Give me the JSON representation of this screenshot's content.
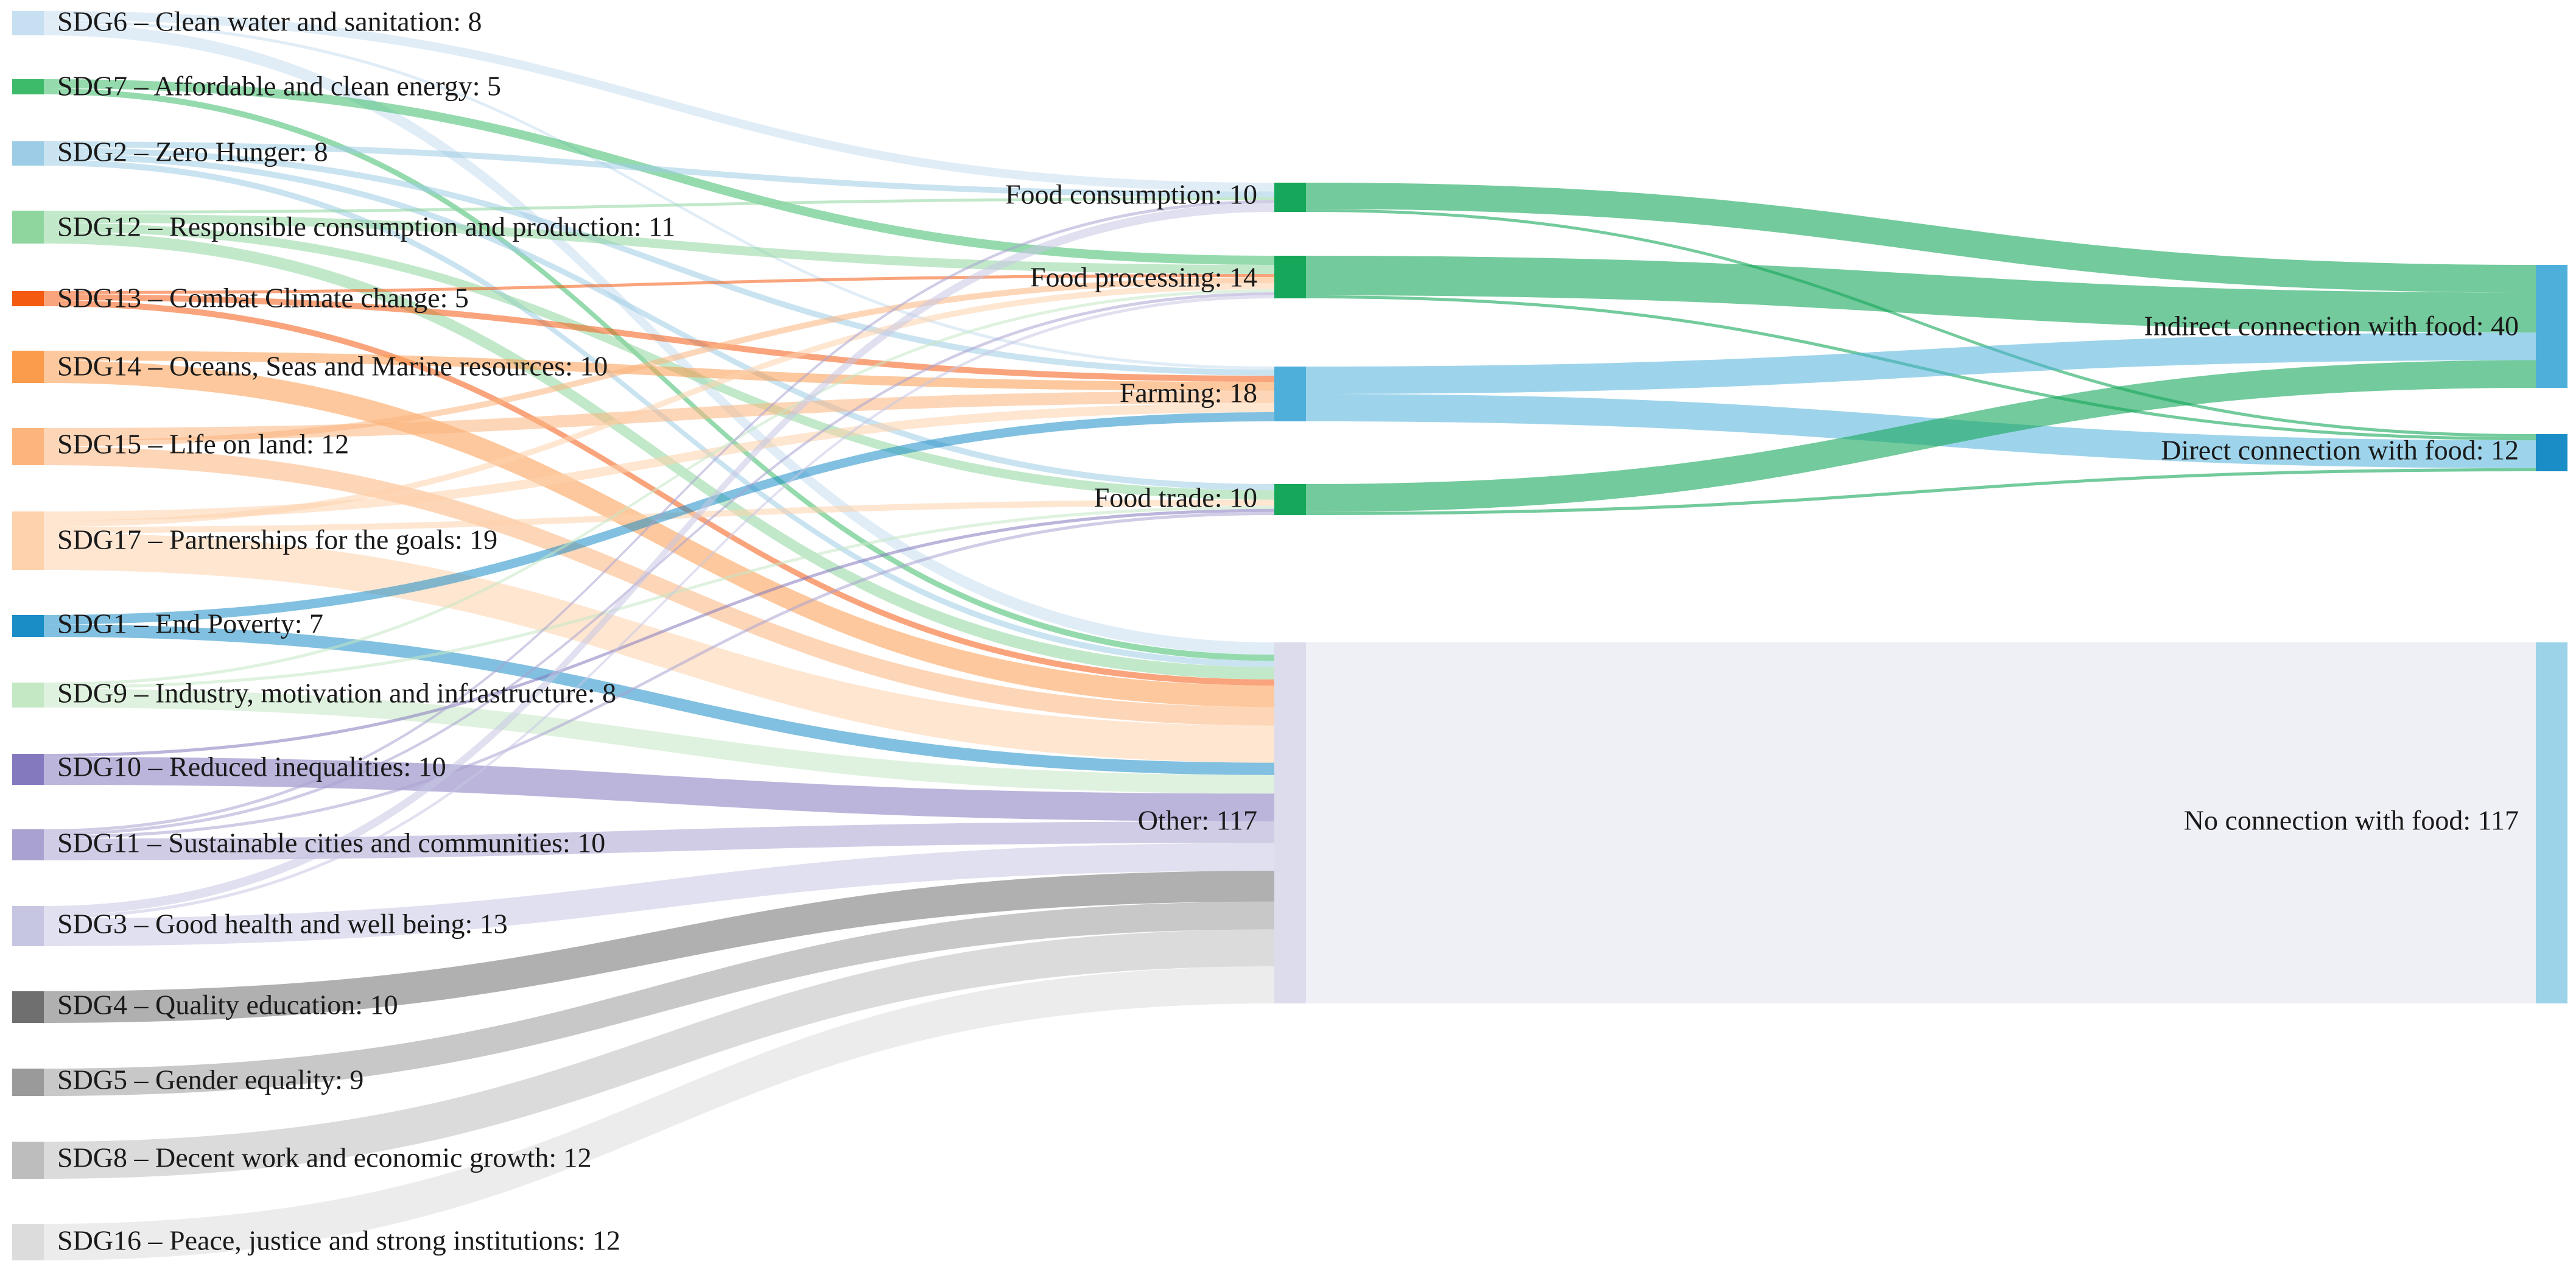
{
  "chart_data": {
    "type": "sankey",
    "title": "",
    "nodes": [
      {
        "id": "sdg6",
        "label": "SDG6 – Clean water and sanitation: 8",
        "value": 8,
        "color": "#c6dff1"
      },
      {
        "id": "sdg7",
        "label": "SDG7 – Affordable and clean energy: 5",
        "value": 5,
        "color": "#3dbb6a"
      },
      {
        "id": "sdg2",
        "label": "SDG2 – Zero Hunger: 8",
        "value": 8,
        "color": "#9dcce6"
      },
      {
        "id": "sdg12",
        "label": "SDG12 – Responsible consumption and production: 11",
        "value": 11,
        "color": "#8fd69e"
      },
      {
        "id": "sdg13",
        "label": "SDG13 – Combat Climate change: 5",
        "value": 5,
        "color": "#f45a10"
      },
      {
        "id": "sdg14",
        "label": "SDG14 – Oceans, Seas and Marine resources: 10",
        "value": 10,
        "color": "#fb9b4c"
      },
      {
        "id": "sdg15",
        "label": "SDG15 – Life on land: 12",
        "value": 12,
        "color": "#fcb57d"
      },
      {
        "id": "sdg17",
        "label": "SDG17 – Partnerships for the goals: 19",
        "value": 19,
        "color": "#fdd2ac"
      },
      {
        "id": "sdg1",
        "label": "SDG1 – End Poverty: 7",
        "value": 7,
        "color": "#1a8cc6"
      },
      {
        "id": "sdg9",
        "label": "SDG9 – Industry, motivation and infrastructure: 8",
        "value": 8,
        "color": "#c4e8c4"
      },
      {
        "id": "sdg10",
        "label": "SDG10 – Reduced inequalities: 10",
        "value": 10,
        "color": "#8479be"
      },
      {
        "id": "sdg11",
        "label": "SDG11 – Sustainable cities and communities: 10",
        "value": 10,
        "color": "#a9a2d1"
      },
      {
        "id": "sdg3",
        "label": "SDG3 – Good health and well being: 13",
        "value": 13,
        "color": "#c6c6e3"
      },
      {
        "id": "sdg4",
        "label": "SDG4 – Quality education: 10",
        "value": 10,
        "color": "#6f6f6f"
      },
      {
        "id": "sdg5",
        "label": "SDG5 – Gender equality: 9",
        "value": 9,
        "color": "#9a9a9a"
      },
      {
        "id": "sdg8",
        "label": "SDG8 – Decent work and economic growth: 12",
        "value": 12,
        "color": "#bdbdbd"
      },
      {
        "id": "sdg16",
        "label": "SDG16 – Peace, justice and strong institutions: 12",
        "value": 12,
        "color": "#dcdcdc"
      },
      {
        "id": "cons",
        "label": "Food consumption: 10",
        "value": 10,
        "color": "#16a75a"
      },
      {
        "id": "proc",
        "label": "Food processing: 14",
        "value": 14,
        "color": "#16a75a"
      },
      {
        "id": "farm",
        "label": "Farming: 18",
        "value": 18,
        "color": "#4eb0da"
      },
      {
        "id": "trade",
        "label": "Food trade: 10",
        "value": 10,
        "color": "#16a75a"
      },
      {
        "id": "other",
        "label": "Other: 117",
        "value": 117,
        "color": "#dcdcec"
      },
      {
        "id": "indirect",
        "label": "Indirect connection with food: 40",
        "value": 40,
        "color": "#4eb0da"
      },
      {
        "id": "direct",
        "label": "Direct connection with food: 12",
        "value": 12,
        "color": "#1a8cc6"
      },
      {
        "id": "none",
        "label": "No connection with food: 117",
        "value": 117,
        "color": "#9dd3e8"
      }
    ],
    "links": [
      {
        "source": "sdg6",
        "target": "cons",
        "value": 3
      },
      {
        "source": "sdg6",
        "target": "farm",
        "value": 1
      },
      {
        "source": "sdg6",
        "target": "other",
        "value": 4
      },
      {
        "source": "sdg7",
        "target": "proc",
        "value": 3
      },
      {
        "source": "sdg7",
        "target": "other",
        "value": 2
      },
      {
        "source": "sdg2",
        "target": "cons",
        "value": 2
      },
      {
        "source": "sdg2",
        "target": "farm",
        "value": 2
      },
      {
        "source": "sdg2",
        "target": "trade",
        "value": 2
      },
      {
        "source": "sdg2",
        "target": "other",
        "value": 2
      },
      {
        "source": "sdg12",
        "target": "cons",
        "value": 1
      },
      {
        "source": "sdg12",
        "target": "proc",
        "value": 3
      },
      {
        "source": "sdg12",
        "target": "trade",
        "value": 3
      },
      {
        "source": "sdg12",
        "target": "other",
        "value": 4
      },
      {
        "source": "sdg13",
        "target": "proc",
        "value": 1
      },
      {
        "source": "sdg13",
        "target": "farm",
        "value": 2
      },
      {
        "source": "sdg13",
        "target": "other",
        "value": 2
      },
      {
        "source": "sdg14",
        "target": "farm",
        "value": 3
      },
      {
        "source": "sdg14",
        "target": "other",
        "value": 7
      },
      {
        "source": "sdg15",
        "target": "farm",
        "value": 4
      },
      {
        "source": "sdg15",
        "target": "proc",
        "value": 2
      },
      {
        "source": "sdg15",
        "target": "other",
        "value": 6
      },
      {
        "source": "sdg17",
        "target": "farm",
        "value": 3
      },
      {
        "source": "sdg17",
        "target": "proc",
        "value": 2
      },
      {
        "source": "sdg17",
        "target": "trade",
        "value": 2
      },
      {
        "source": "sdg17",
        "target": "other",
        "value": 12
      },
      {
        "source": "sdg1",
        "target": "farm",
        "value": 3
      },
      {
        "source": "sdg1",
        "target": "other",
        "value": 4
      },
      {
        "source": "sdg9",
        "target": "proc",
        "value": 1
      },
      {
        "source": "sdg9",
        "target": "trade",
        "value": 1
      },
      {
        "source": "sdg9",
        "target": "other",
        "value": 6
      },
      {
        "source": "sdg10",
        "target": "trade",
        "value": 1
      },
      {
        "source": "sdg10",
        "target": "other",
        "value": 9
      },
      {
        "source": "sdg11",
        "target": "cons",
        "value": 1
      },
      {
        "source": "sdg11",
        "target": "proc",
        "value": 1
      },
      {
        "source": "sdg11",
        "target": "trade",
        "value": 1
      },
      {
        "source": "sdg11",
        "target": "other",
        "value": 7
      },
      {
        "source": "sdg3",
        "target": "cons",
        "value": 3
      },
      {
        "source": "sdg3",
        "target": "proc",
        "value": 1
      },
      {
        "source": "sdg3",
        "target": "other",
        "value": 9
      },
      {
        "source": "sdg4",
        "target": "other",
        "value": 10
      },
      {
        "source": "sdg5",
        "target": "other",
        "value": 9
      },
      {
        "source": "sdg8",
        "target": "other",
        "value": 12
      },
      {
        "source": "sdg16",
        "target": "other",
        "value": 12
      },
      {
        "source": "cons",
        "target": "indirect",
        "value": 9
      },
      {
        "source": "cons",
        "target": "direct",
        "value": 1
      },
      {
        "source": "proc",
        "target": "indirect",
        "value": 13
      },
      {
        "source": "proc",
        "target": "direct",
        "value": 1
      },
      {
        "source": "farm",
        "target": "indirect",
        "value": 9
      },
      {
        "source": "farm",
        "target": "direct",
        "value": 9
      },
      {
        "source": "trade",
        "target": "indirect",
        "value": 9
      },
      {
        "source": "trade",
        "target": "direct",
        "value": 1
      },
      {
        "source": "other",
        "target": "none",
        "value": 117
      }
    ]
  }
}
